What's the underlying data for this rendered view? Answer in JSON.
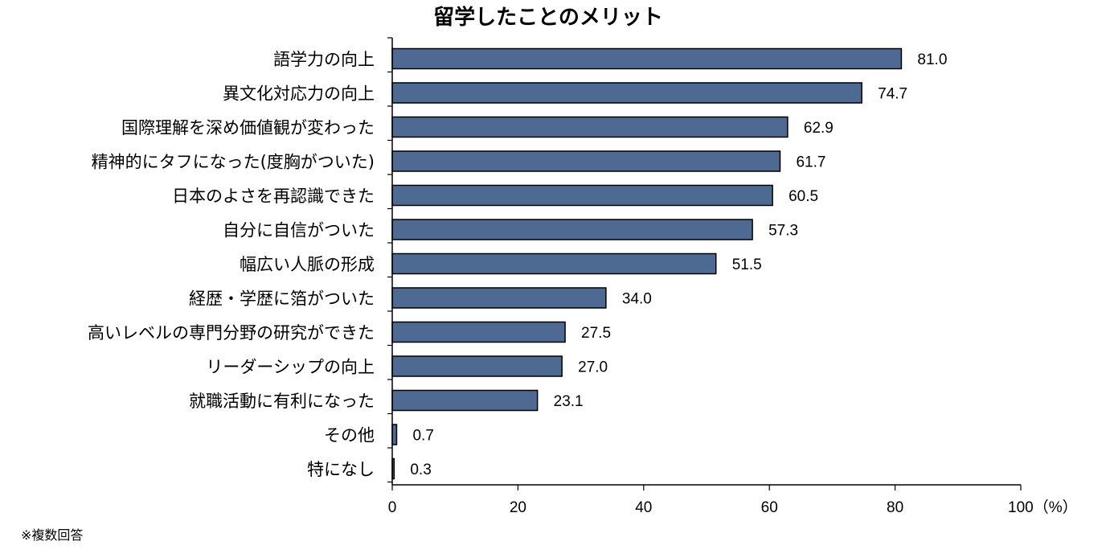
{
  "chart_data": {
    "type": "bar",
    "orientation": "horizontal",
    "title": "留学したことのメリット",
    "categories": [
      "語学力の向上",
      "異文化対応力の向上",
      "国際理解を深め価値観が変わった",
      "精神的にタフになった(度胸がついた)",
      "日本のよさを再認識できた",
      "自分に自信がついた",
      "幅広い人脈の形成",
      "経歴・学歴に箔がついた",
      "高いレベルの専門分野の研究ができた",
      "リーダーシップの向上",
      "就職活動に有利になった",
      "その他",
      "特になし"
    ],
    "values": [
      81.0,
      74.7,
      62.9,
      61.7,
      60.5,
      57.3,
      51.5,
      34.0,
      27.5,
      27.0,
      23.1,
      0.7,
      0.3
    ],
    "value_labels": [
      "81.0",
      "74.7",
      "62.9",
      "61.7",
      "60.5",
      "57.3",
      "51.5",
      "34.0",
      "27.5",
      "27.0",
      "23.1",
      "0.7",
      "0.3"
    ],
    "xlim": [
      0,
      100
    ],
    "x_ticks": [
      "0",
      "20",
      "40",
      "60",
      "80",
      "100（%）"
    ],
    "x_tick_values": [
      0,
      20,
      40,
      60,
      80,
      100
    ],
    "bar_color": "#4f6a92",
    "bar_edge_color": "#000000",
    "grid": false
  },
  "footnote": "※複数回答"
}
